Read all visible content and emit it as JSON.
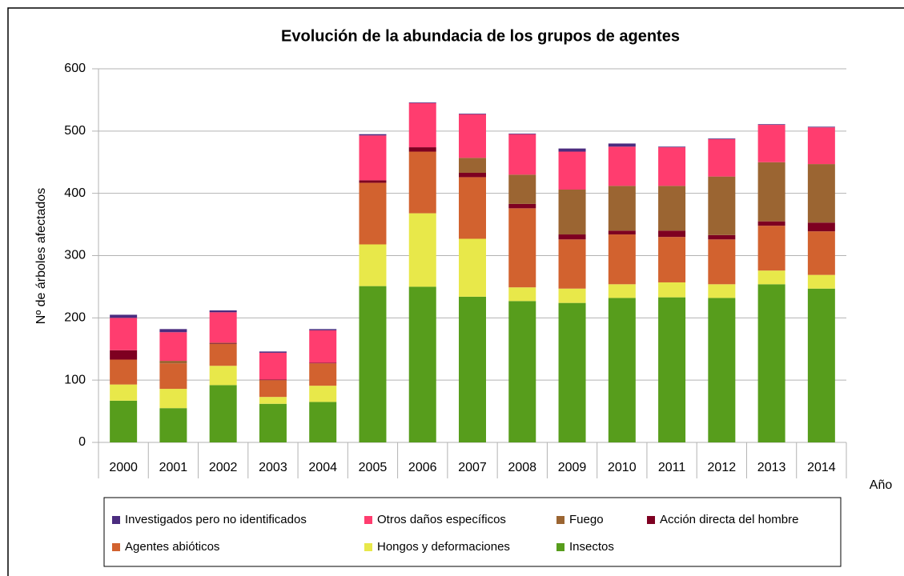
{
  "chart_data": {
    "type": "stacked_bar",
    "title": "Evolución de la abundacia de los grupos de agentes",
    "x_label": "Año",
    "y_label": "Nº de árboles afectados",
    "categories": [
      "2000",
      "2001",
      "2002",
      "2003",
      "2004",
      "2005",
      "2006",
      "2007",
      "2008",
      "2009",
      "2010",
      "2011",
      "2012",
      "2013",
      "2014"
    ],
    "ylim": [
      0,
      600
    ],
    "yticks": [
      0,
      100,
      200,
      300,
      400,
      500,
      600
    ],
    "grid": true,
    "series": [
      {
        "name": "Insectos",
        "color": "#579d1c",
        "values": [
          67,
          55,
          92,
          62,
          65,
          251,
          250,
          234,
          227,
          224,
          232,
          233,
          232,
          254,
          247
        ]
      },
      {
        "name": "Hongos y deformaciones",
        "color": "#e8e84a",
        "values": [
          26,
          31,
          31,
          11,
          26,
          67,
          118,
          93,
          22,
          23,
          22,
          24,
          22,
          22,
          22
        ]
      },
      {
        "name": "Agentes abióticos",
        "color": "#d2622f",
        "values": [
          40,
          41,
          35,
          27,
          36,
          99,
          99,
          99,
          127,
          79,
          80,
          73,
          72,
          72,
          70
        ]
      },
      {
        "name": "Acción directa del hombre",
        "color": "#7e0021",
        "values": [
          15,
          0,
          1,
          1,
          1,
          4,
          7,
          7,
          7,
          8,
          6,
          10,
          7,
          7,
          14
        ]
      },
      {
        "name": "Fuego",
        "color": "#9b6532",
        "values": [
          0,
          4,
          1,
          0,
          0,
          0,
          0,
          24,
          47,
          72,
          72,
          72,
          94,
          95,
          94
        ]
      },
      {
        "name": "Otros daños específicos",
        "color": "#ff3d6f",
        "values": [
          52,
          46,
          49,
          43,
          52,
          72,
          71,
          70,
          65,
          61,
          63,
          62,
          60,
          60,
          59
        ]
      },
      {
        "name": "Investigados pero no identificados",
        "color": "#4b2c7f",
        "values": [
          5,
          5,
          3,
          2,
          2,
          2,
          1,
          1,
          1,
          5,
          5,
          1,
          1,
          1,
          1
        ]
      }
    ]
  }
}
